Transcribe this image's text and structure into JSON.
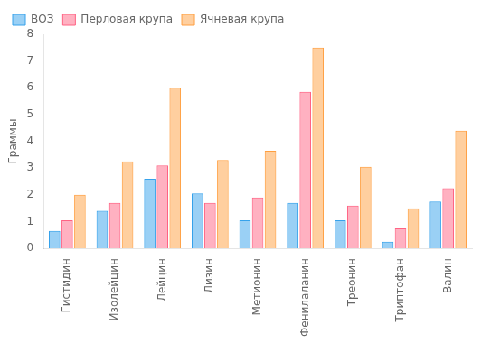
{
  "chart_data": {
    "type": "bar",
    "categories": [
      "Гистидин",
      "Изолейцин",
      "Лейцин",
      "Лизин",
      "Метионин",
      "Фенилаланин",
      "Треонин",
      "Триптофан",
      "Валин"
    ],
    "series": [
      {
        "name": "ВОЗ",
        "values": [
          0.65,
          1.4,
          2.6,
          2.05,
          1.05,
          1.7,
          1.05,
          0.25,
          1.75
        ]
      },
      {
        "name": "Перловая крупа",
        "values": [
          1.05,
          1.7,
          3.1,
          1.7,
          1.9,
          5.85,
          1.6,
          0.75,
          2.25
        ]
      },
      {
        "name": "Ячневая крупа",
        "values": [
          2.0,
          3.25,
          6.0,
          3.3,
          3.65,
          7.5,
          3.05,
          1.5,
          4.4
        ]
      }
    ],
    "ylabel": "Граммы",
    "ylim": [
      0,
      8
    ],
    "yticks": [
      0,
      1,
      2,
      3,
      4,
      5,
      6,
      7,
      8
    ],
    "grid": false,
    "legend": "upper left"
  }
}
